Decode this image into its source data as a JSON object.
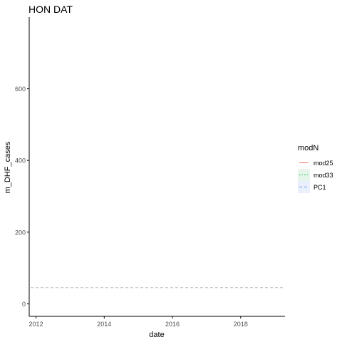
{
  "chart_data": {
    "type": "line",
    "title": "HON DAT",
    "xlabel": "date",
    "ylabel": "m_DHF_cases",
    "x_ticks": [
      "2012",
      "2014",
      "2016",
      "2018"
    ],
    "y_ticks": [
      0,
      200,
      400,
      600
    ],
    "xlim": [
      2011.8,
      2019.3
    ],
    "ylim": [
      -35,
      800
    ],
    "grid": false,
    "legend": {
      "title": "modN",
      "position": "right"
    },
    "series": [
      {
        "name": "mod25",
        "color": "#F8766D",
        "linestyle": "solid",
        "fill": "#ffffff",
        "points": []
      },
      {
        "name": "mod33",
        "color": "#00BA38",
        "linestyle": "dotted",
        "fill": "#e8f5ea",
        "points": []
      },
      {
        "name": "PC1",
        "color": "#619CFF",
        "linestyle": "dashed",
        "fill": "#eaf0fb",
        "points": []
      }
    ],
    "reference_line": {
      "y": 45,
      "color": "#bdbdbd",
      "linestyle": "dashed"
    }
  }
}
